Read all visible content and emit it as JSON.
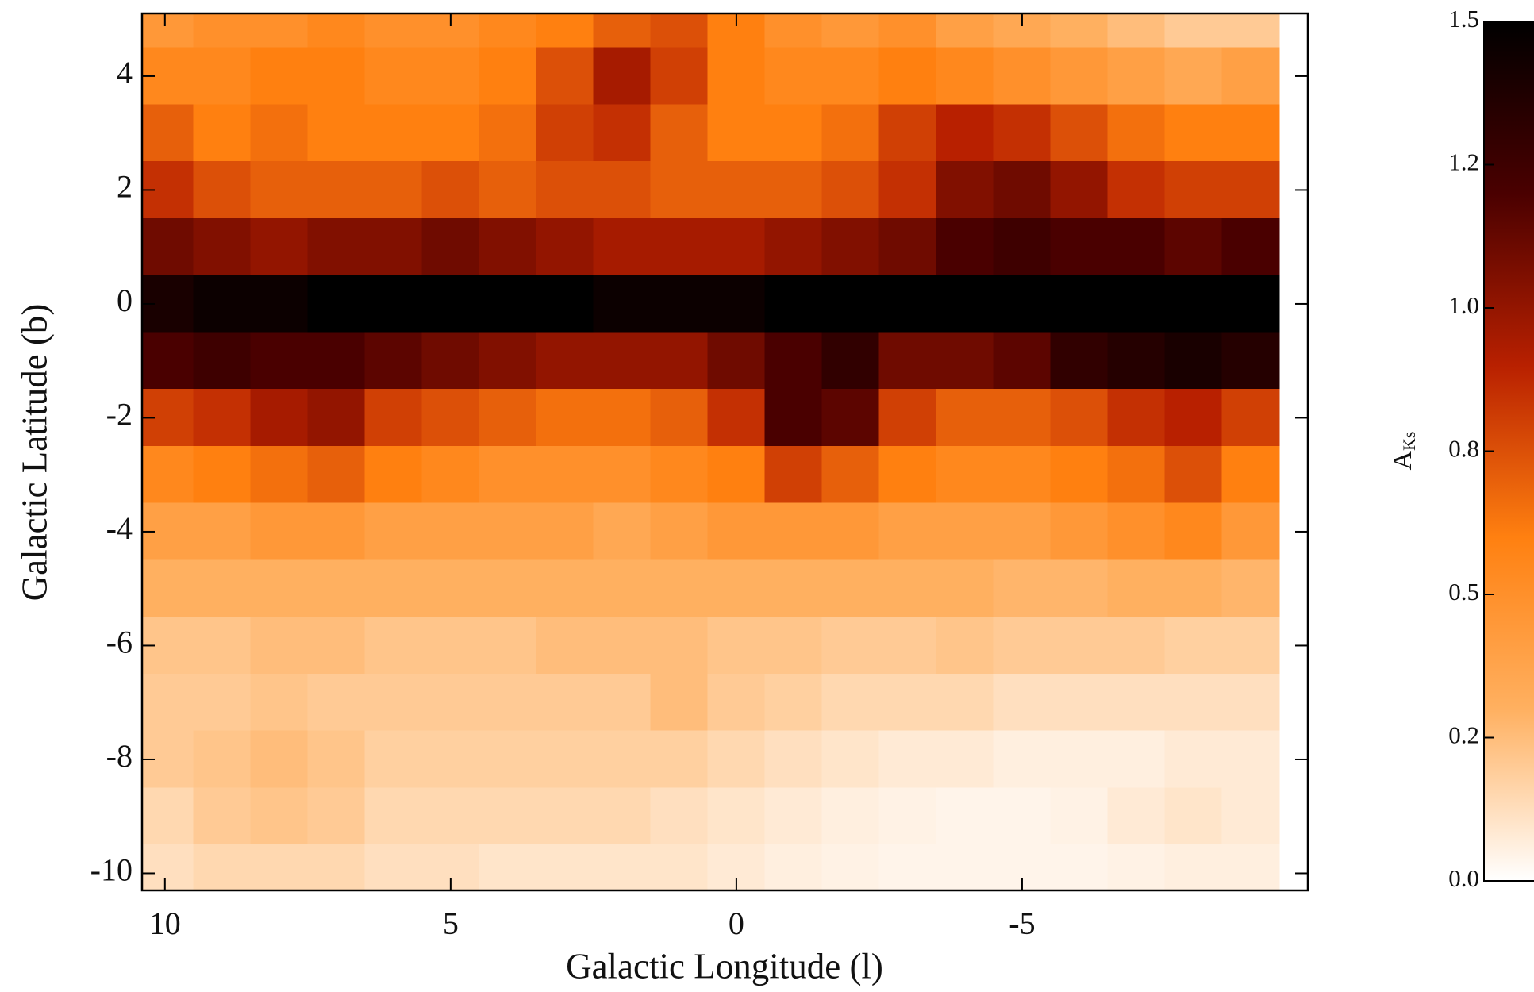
{
  "chart_data": {
    "type": "heatmap",
    "x_label": "Galactic Longitude (l)",
    "y_label": "Galactic Latitude (b)",
    "colorbar_label": "A",
    "colorbar_label_sub": "Ks",
    "xlim": [
      10.4,
      -10.0
    ],
    "ylim": [
      -10.3,
      5.1
    ],
    "xticks": [
      10,
      5,
      0,
      -5
    ],
    "yticks": [
      -10,
      -8,
      -6,
      -4,
      -2,
      0,
      2,
      4
    ],
    "clim": [
      0,
      1.5
    ],
    "cticks": [
      {
        "value": 0,
        "label": "0.0"
      },
      {
        "value": 0.25,
        "label": "0.2"
      },
      {
        "value": 0.5,
        "label": "0.5"
      },
      {
        "value": 0.75,
        "label": "0.8"
      },
      {
        "value": 1.0,
        "label": "1.0"
      },
      {
        "value": 1.25,
        "label": "1.2"
      },
      {
        "value": 1.5,
        "label": "1.5"
      }
    ],
    "colormap": [
      "#ffffff",
      "#ffb060",
      "#ff8010",
      "#b82000",
      "#4a0000",
      "#000000"
    ],
    "x": [
      10,
      9,
      8,
      7,
      6,
      5,
      4,
      3,
      2,
      1,
      0,
      -1,
      -2,
      -3,
      -4,
      -5,
      -6,
      -7,
      -8,
      -9
    ],
    "y": [
      5,
      4,
      3,
      2,
      1,
      0,
      -1,
      -2,
      -3,
      -4,
      -5,
      -6,
      -7,
      -8,
      -9,
      -10
    ],
    "values": [
      [
        0.45,
        0.5,
        0.5,
        0.55,
        0.5,
        0.5,
        0.55,
        0.6,
        0.7,
        0.75,
        0.6,
        0.5,
        0.45,
        0.5,
        0.4,
        0.35,
        0.3,
        0.25,
        0.2,
        0.2
      ],
      [
        0.55,
        0.55,
        0.6,
        0.6,
        0.55,
        0.55,
        0.6,
        0.75,
        0.95,
        0.8,
        0.6,
        0.55,
        0.55,
        0.6,
        0.55,
        0.5,
        0.45,
        0.4,
        0.35,
        0.4
      ],
      [
        0.7,
        0.6,
        0.65,
        0.6,
        0.6,
        0.6,
        0.65,
        0.8,
        0.85,
        0.7,
        0.6,
        0.6,
        0.65,
        0.8,
        0.9,
        0.85,
        0.75,
        0.65,
        0.6,
        0.6
      ],
      [
        0.85,
        0.75,
        0.7,
        0.7,
        0.7,
        0.75,
        0.7,
        0.75,
        0.75,
        0.7,
        0.7,
        0.7,
        0.75,
        0.85,
        1.05,
        1.1,
        1.0,
        0.85,
        0.8,
        0.8
      ],
      [
        1.1,
        1.05,
        1.0,
        1.05,
        1.05,
        1.1,
        1.05,
        1.0,
        0.95,
        0.95,
        0.95,
        1.0,
        1.05,
        1.1,
        1.2,
        1.25,
        1.2,
        1.2,
        1.15,
        1.2
      ],
      [
        1.4,
        1.45,
        1.45,
        1.5,
        1.5,
        1.5,
        1.5,
        1.5,
        1.45,
        1.45,
        1.45,
        1.5,
        1.5,
        1.5,
        1.5,
        1.5,
        1.5,
        1.5,
        1.5,
        1.5
      ],
      [
        1.2,
        1.25,
        1.2,
        1.2,
        1.15,
        1.1,
        1.05,
        1.0,
        1.0,
        1.0,
        1.1,
        1.2,
        1.3,
        1.1,
        1.1,
        1.15,
        1.3,
        1.35,
        1.4,
        1.35
      ],
      [
        0.8,
        0.85,
        0.95,
        1.0,
        0.8,
        0.75,
        0.7,
        0.65,
        0.65,
        0.7,
        0.85,
        1.2,
        1.15,
        0.8,
        0.7,
        0.7,
        0.75,
        0.85,
        0.9,
        0.8
      ],
      [
        0.55,
        0.6,
        0.65,
        0.7,
        0.6,
        0.55,
        0.5,
        0.5,
        0.5,
        0.55,
        0.6,
        0.8,
        0.7,
        0.6,
        0.55,
        0.55,
        0.6,
        0.65,
        0.75,
        0.6
      ],
      [
        0.4,
        0.4,
        0.45,
        0.45,
        0.4,
        0.4,
        0.4,
        0.4,
        0.35,
        0.4,
        0.45,
        0.45,
        0.45,
        0.4,
        0.4,
        0.4,
        0.45,
        0.5,
        0.55,
        0.45
      ],
      [
        0.3,
        0.3,
        0.3,
        0.3,
        0.3,
        0.3,
        0.3,
        0.3,
        0.3,
        0.3,
        0.3,
        0.3,
        0.3,
        0.3,
        0.3,
        0.28,
        0.28,
        0.3,
        0.3,
        0.28
      ],
      [
        0.22,
        0.22,
        0.25,
        0.25,
        0.22,
        0.22,
        0.22,
        0.25,
        0.25,
        0.25,
        0.22,
        0.22,
        0.2,
        0.2,
        0.22,
        0.2,
        0.2,
        0.2,
        0.18,
        0.18
      ],
      [
        0.2,
        0.2,
        0.22,
        0.2,
        0.2,
        0.2,
        0.2,
        0.2,
        0.2,
        0.25,
        0.2,
        0.18,
        0.15,
        0.15,
        0.15,
        0.12,
        0.12,
        0.12,
        0.12,
        0.12
      ],
      [
        0.2,
        0.22,
        0.25,
        0.22,
        0.18,
        0.18,
        0.18,
        0.18,
        0.18,
        0.18,
        0.15,
        0.12,
        0.1,
        0.08,
        0.08,
        0.06,
        0.06,
        0.06,
        0.08,
        0.08
      ],
      [
        0.15,
        0.2,
        0.22,
        0.2,
        0.15,
        0.15,
        0.15,
        0.15,
        0.15,
        0.12,
        0.1,
        0.08,
        0.06,
        0.05,
        0.04,
        0.04,
        0.05,
        0.08,
        0.1,
        0.08
      ],
      [
        0.12,
        0.15,
        0.15,
        0.15,
        0.12,
        0.12,
        0.1,
        0.1,
        0.1,
        0.1,
        0.08,
        0.06,
        0.05,
        0.04,
        0.04,
        0.04,
        0.04,
        0.05,
        0.06,
        0.06
      ]
    ]
  }
}
